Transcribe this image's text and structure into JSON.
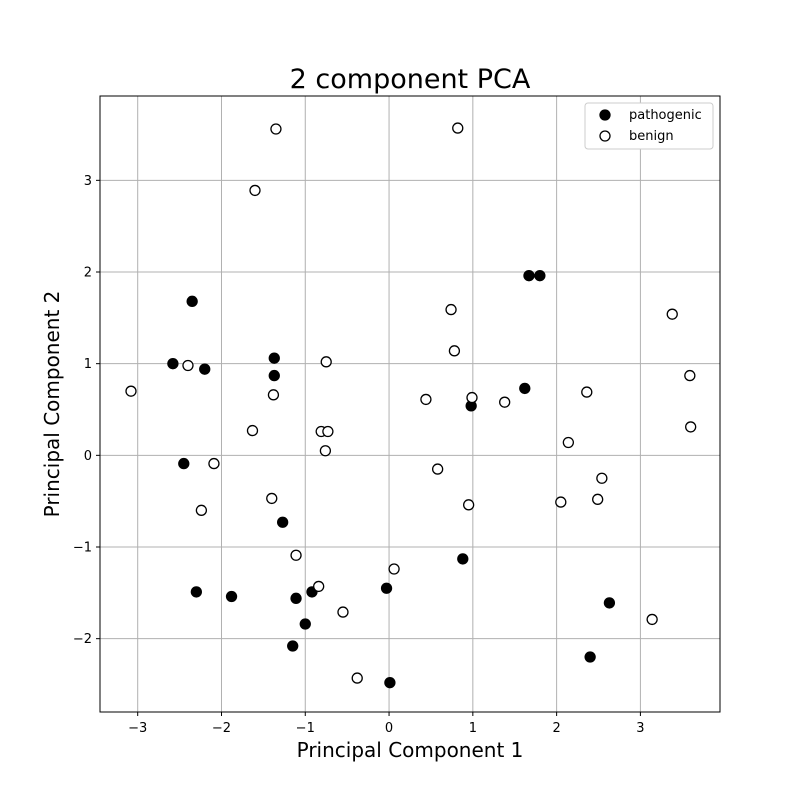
{
  "chart_data": {
    "type": "scatter",
    "title": "2 component PCA",
    "xlabel": "Principal Component 1",
    "ylabel": "Principal Component 2",
    "xlim": [
      -3.45,
      3.95
    ],
    "ylim": [
      -2.8,
      3.92
    ],
    "xticks": [
      -3,
      -2,
      -1,
      0,
      1,
      2,
      3
    ],
    "yticks": [
      -2,
      -1,
      0,
      1,
      2,
      3
    ],
    "xtick_labels": [
      "−3",
      "−2",
      "−1",
      "0",
      "1",
      "2",
      "3"
    ],
    "ytick_labels": [
      "−2",
      "−1",
      "0",
      "1",
      "2",
      "3"
    ],
    "grid": true,
    "legend_position": "top-right",
    "series": [
      {
        "name": "pathogenic",
        "color": "#000000",
        "marker": "filled-circle",
        "points": [
          [
            -2.35,
            1.68
          ],
          [
            -2.58,
            1.0
          ],
          [
            -2.2,
            0.94
          ],
          [
            -1.37,
            1.06
          ],
          [
            -1.37,
            0.87
          ],
          [
            -2.45,
            -0.09
          ],
          [
            -1.27,
            -0.73
          ],
          [
            -2.3,
            -1.49
          ],
          [
            -1.88,
            -1.54
          ],
          [
            -1.11,
            -1.56
          ],
          [
            -0.92,
            -1.49
          ],
          [
            -1.0,
            -1.84
          ],
          [
            -1.15,
            -2.08
          ],
          [
            -0.03,
            -1.45
          ],
          [
            0.01,
            -2.48
          ],
          [
            0.88,
            -1.13
          ],
          [
            0.98,
            0.54
          ],
          [
            1.62,
            0.73
          ],
          [
            1.67,
            1.96
          ],
          [
            1.8,
            1.96
          ],
          [
            2.4,
            -2.2
          ],
          [
            2.63,
            -1.61
          ]
        ]
      },
      {
        "name": "benign",
        "color": "#000000",
        "marker": "hollow-circle",
        "points": [
          [
            -1.35,
            3.56
          ],
          [
            0.82,
            3.57
          ],
          [
            -1.6,
            2.89
          ],
          [
            -3.08,
            0.7
          ],
          [
            -2.4,
            0.98
          ],
          [
            -1.38,
            0.66
          ],
          [
            -0.75,
            1.02
          ],
          [
            -1.63,
            0.27
          ],
          [
            -0.81,
            0.26
          ],
          [
            -0.73,
            0.26
          ],
          [
            -0.76,
            0.05
          ],
          [
            -2.09,
            -0.09
          ],
          [
            -1.4,
            -0.47
          ],
          [
            -2.24,
            -0.6
          ],
          [
            -1.11,
            -1.09
          ],
          [
            -0.84,
            -1.43
          ],
          [
            0.06,
            -1.24
          ],
          [
            -0.55,
            -1.71
          ],
          [
            -0.38,
            -2.43
          ],
          [
            0.74,
            1.59
          ],
          [
            0.78,
            1.14
          ],
          [
            0.44,
            0.61
          ],
          [
            0.99,
            0.63
          ],
          [
            1.38,
            0.58
          ],
          [
            0.58,
            -0.15
          ],
          [
            0.95,
            -0.54
          ],
          [
            2.36,
            0.69
          ],
          [
            2.14,
            0.14
          ],
          [
            2.54,
            -0.25
          ],
          [
            2.05,
            -0.51
          ],
          [
            2.49,
            -0.48
          ],
          [
            3.38,
            1.54
          ],
          [
            3.59,
            0.87
          ],
          [
            3.6,
            0.31
          ],
          [
            3.14,
            -1.79
          ]
        ]
      }
    ]
  }
}
